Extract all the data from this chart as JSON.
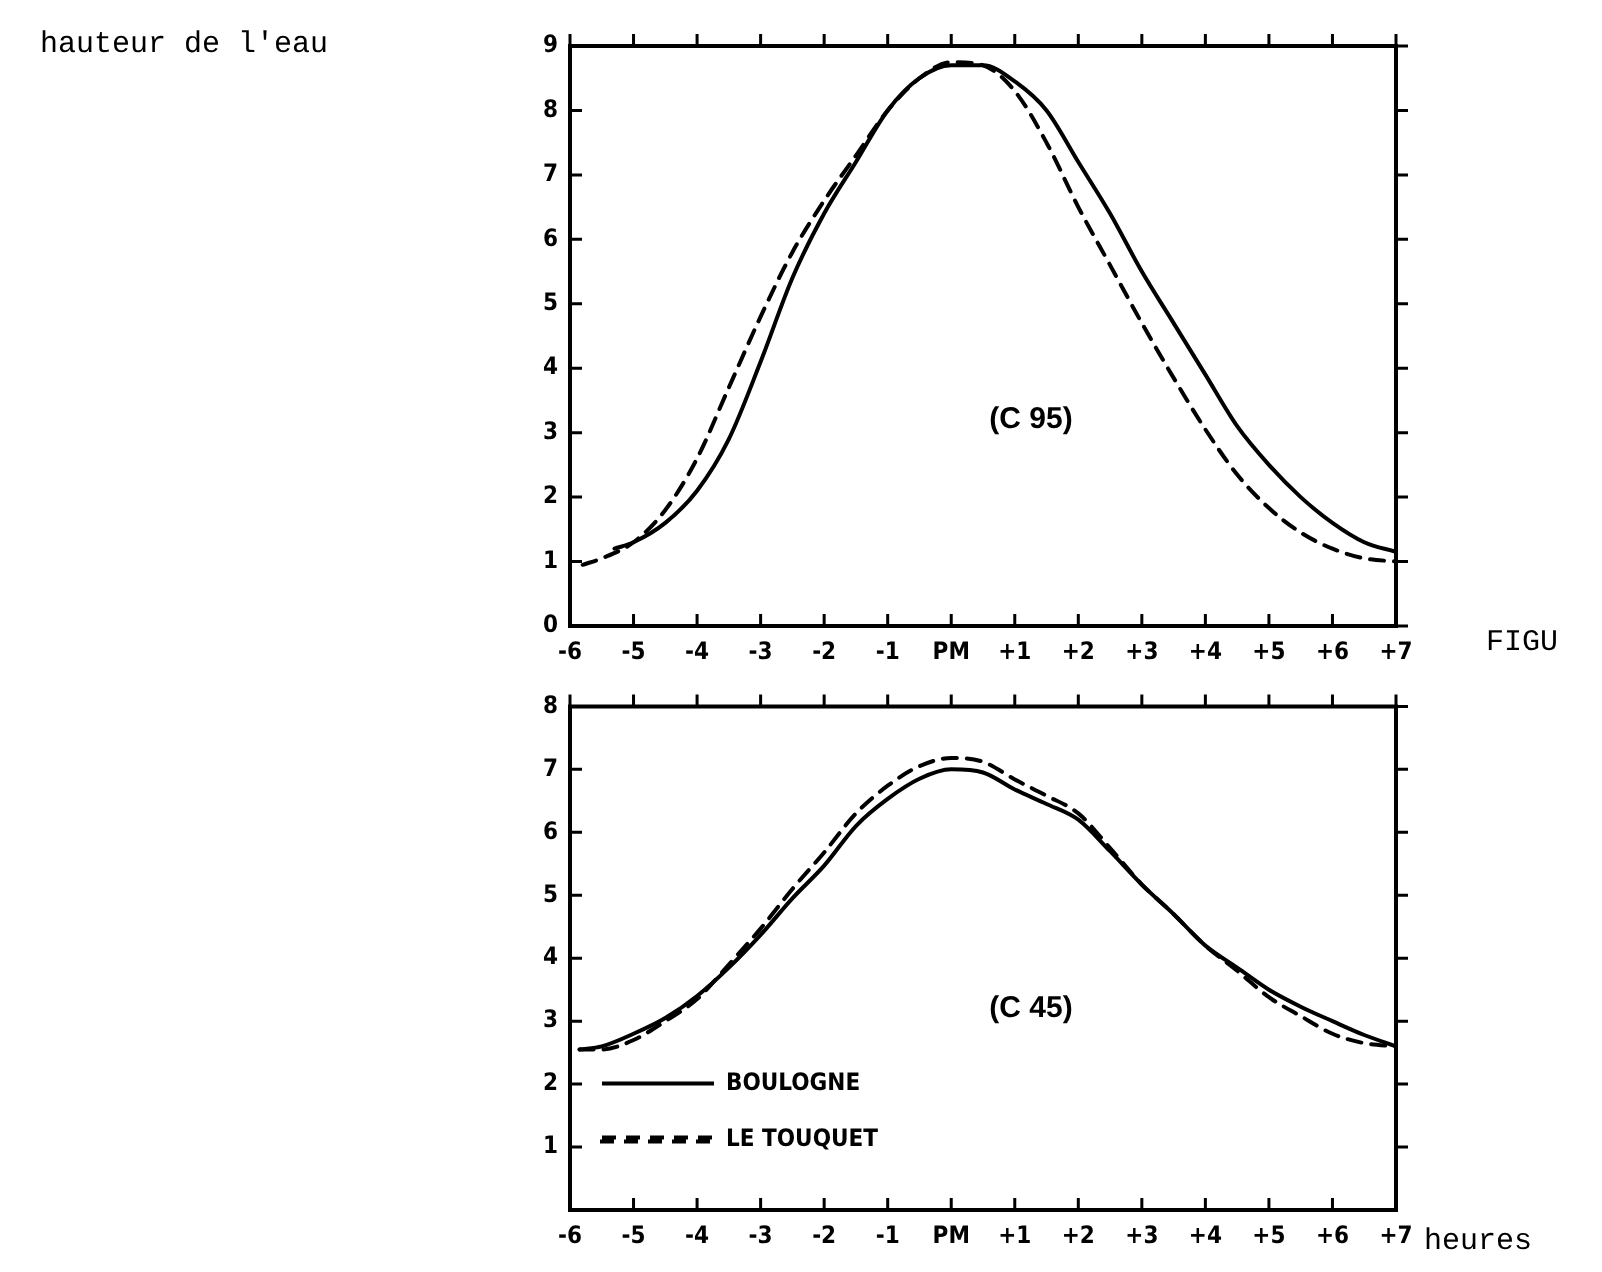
{
  "chart_data": [
    {
      "type": "line",
      "ylabel": "hauteur de l'eau",
      "annotations": [
        "(C 95)",
        "FIGU"
      ],
      "xlim": [
        -6,
        7
      ],
      "ylim": [
        0,
        9
      ],
      "xticks": [
        -6,
        -5,
        -4,
        -3,
        -2,
        -1,
        {
          "value": 0,
          "label": "PM"
        },
        {
          "value": 1,
          "label": "+1"
        },
        {
          "value": 2,
          "label": "+2"
        },
        {
          "value": 3,
          "label": "+3"
        },
        {
          "value": 4,
          "label": "+4"
        },
        {
          "value": 5,
          "label": "+5"
        },
        {
          "value": 6,
          "label": "+6"
        },
        {
          "value": 7,
          "label": "+7"
        }
      ],
      "yticks": [
        0,
        1,
        2,
        3,
        4,
        5,
        6,
        7,
        8,
        9
      ],
      "grid": false,
      "legend": false,
      "marker": "none",
      "series": [
        {
          "color": "#000000",
          "line_style": "solid",
          "x": [
            -5.3,
            -5,
            -4.5,
            -4,
            -3.5,
            -3,
            -2.5,
            -2,
            -1.5,
            -1,
            -0.5,
            0,
            0.5,
            1,
            1.5,
            2,
            2.5,
            3,
            3.5,
            4,
            4.5,
            5,
            5.5,
            6,
            6.5,
            7
          ],
          "values": [
            1.2,
            1.3,
            1.6,
            2.1,
            2.9,
            4.1,
            5.4,
            6.4,
            7.2,
            8.0,
            8.5,
            8.7,
            8.7,
            8.45,
            8.0,
            7.2,
            6.4,
            5.5,
            4.7,
            3.9,
            3.1,
            2.5,
            2.0,
            1.6,
            1.3,
            1.15
          ]
        },
        {
          "color": "#000000",
          "line_style": "dashed",
          "x": [
            -5.8,
            -5.5,
            -5,
            -4.5,
            -4,
            -3.5,
            -3,
            -2.5,
            -2,
            -1.5,
            -1,
            -0.5,
            0,
            0.5,
            1,
            1.5,
            2,
            2.5,
            3,
            3.5,
            4,
            4.5,
            5,
            5.5,
            6,
            6.5,
            7
          ],
          "values": [
            0.95,
            1.05,
            1.3,
            1.8,
            2.6,
            3.7,
            4.8,
            5.8,
            6.6,
            7.3,
            8.0,
            8.5,
            8.75,
            8.7,
            8.3,
            7.5,
            6.5,
            5.6,
            4.7,
            3.85,
            3.05,
            2.35,
            1.83,
            1.45,
            1.2,
            1.05,
            1.0
          ]
        }
      ]
    },
    {
      "type": "line",
      "xlabel": "heures",
      "annotations": [
        "(C 45)"
      ],
      "xlim": [
        -6,
        7
      ],
      "ylim": [
        0,
        8
      ],
      "xticks": [
        -6,
        -5,
        -4,
        -3,
        -2,
        -1,
        {
          "value": 0,
          "label": "PM"
        },
        {
          "value": 1,
          "label": "+1"
        },
        {
          "value": 2,
          "label": "+2"
        },
        {
          "value": 3,
          "label": "+3"
        },
        {
          "value": 4,
          "label": "+4"
        },
        {
          "value": 5,
          "label": "+5"
        },
        {
          "value": 6,
          "label": "+6"
        },
        {
          "value": 7,
          "label": "+7"
        }
      ],
      "yticks": [
        1,
        2,
        3,
        4,
        5,
        6,
        7,
        8
      ],
      "grid": false,
      "legend": "bottom left",
      "marker": "none",
      "series": [
        {
          "name": "BOULOGNE",
          "color": "#000000",
          "line_style": "solid",
          "x": [
            -5.85,
            -5.5,
            -5,
            -4.5,
            -4,
            -3.5,
            -3,
            -2.5,
            -2,
            -1.5,
            -1,
            -0.5,
            0,
            0.5,
            1,
            1.5,
            2,
            2.5,
            3,
            3.5,
            4,
            4.5,
            5,
            5.5,
            6,
            6.5,
            7
          ],
          "values": [
            2.55,
            2.6,
            2.8,
            3.05,
            3.4,
            3.85,
            4.37,
            4.95,
            5.47,
            6.1,
            6.53,
            6.85,
            7.0,
            6.95,
            6.68,
            6.45,
            6.2,
            5.7,
            5.17,
            4.7,
            4.2,
            3.85,
            3.5,
            3.23,
            3.0,
            2.78,
            2.6
          ]
        },
        {
          "name": "LE TOUQUET",
          "color": "#000000",
          "line_style": "dashed",
          "x": [
            -5.85,
            -5.5,
            -5,
            -4.5,
            -4,
            -3.5,
            -3,
            -2.5,
            -2,
            -1.5,
            -1,
            -0.5,
            0,
            0.5,
            1,
            1.5,
            2,
            2.5,
            3,
            3.5,
            4,
            4.5,
            5,
            5.5,
            6,
            6.5,
            7
          ],
          "values": [
            2.55,
            2.55,
            2.7,
            3.0,
            3.35,
            3.9,
            4.47,
            5.1,
            5.68,
            6.3,
            6.74,
            7.05,
            7.18,
            7.12,
            6.84,
            6.58,
            6.3,
            5.75,
            5.17,
            4.7,
            4.2,
            3.8,
            3.38,
            3.08,
            2.8,
            2.65,
            2.6
          ]
        }
      ]
    }
  ]
}
